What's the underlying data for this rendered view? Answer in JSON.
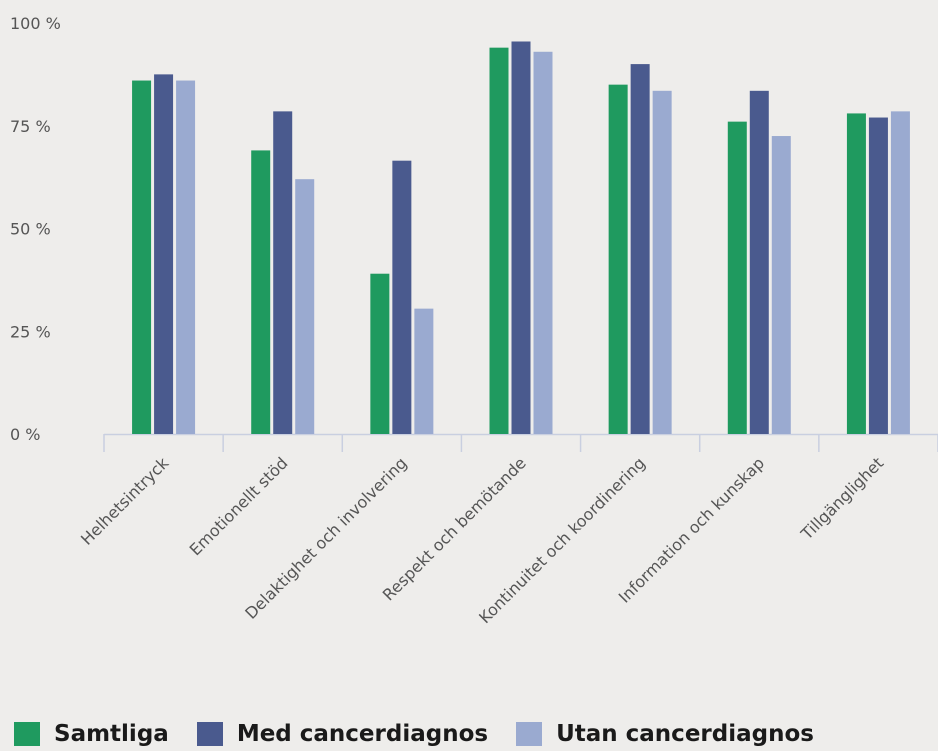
{
  "chart_data": {
    "type": "bar",
    "categories": [
      "Helhetsintryck",
      "Emotionellt stöd",
      "Delaktighet och involvering",
      "Respekt och bemötande",
      "Kontinuitet och koordinering",
      "Information och kunskap",
      "Tillgänglighet"
    ],
    "series": [
      {
        "name": "Samtliga",
        "color": "#1f9a5f",
        "values": [
          86,
          69,
          39,
          94,
          85,
          76,
          78
        ]
      },
      {
        "name": "Med cancerdiagnos",
        "color": "#4a5a8e",
        "values": [
          87.5,
          78.5,
          66.5,
          95.5,
          90,
          83.5,
          77
        ]
      },
      {
        "name": "Utan cancerdiagnos",
        "color": "#9aaad0",
        "values": [
          86,
          62,
          30.5,
          93,
          83.5,
          72.5,
          78.5
        ]
      }
    ],
    "yticks": [
      "0 %",
      "25 %",
      "50 %",
      "75 %",
      "100 %"
    ],
    "ylim": [
      0,
      100
    ],
    "grid": false,
    "legend_position": "bottom-left"
  }
}
